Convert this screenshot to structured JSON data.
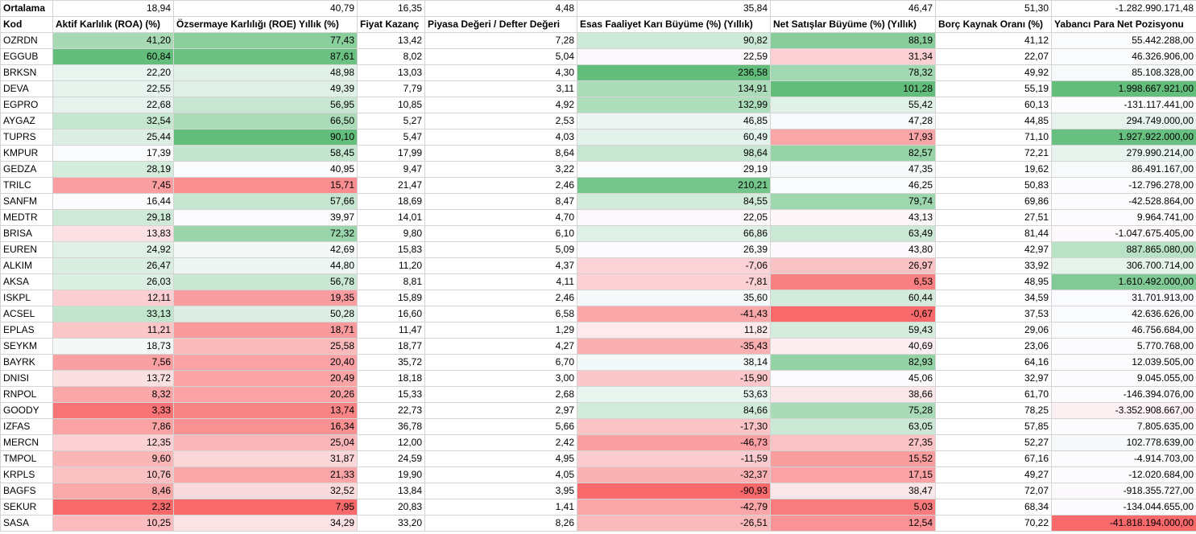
{
  "average_row": {
    "label": "Ortalama",
    "values": [
      "18,94",
      "40,79",
      "16,35",
      "4,48",
      "35,84",
      "46,47",
      "51,30",
      "-1.282.990.171,48"
    ]
  },
  "columns": [
    "Kod",
    "Aktif Karlılık (ROA) (%)",
    "Özsermaye Karlılığı (ROE) Yıllık (%)",
    "Fiyat Kazanç",
    "Piyasa Değeri / Defter Değeri",
    "Esas Faaliyet Karı Büyüme (%) (Yıllık)",
    "Net Satışlar Büyüme (%) (Yıllık)",
    "Borç Kaynak Oranı (%)",
    "Yabancı Para Net Pozisyonu"
  ],
  "rows": [
    {
      "kod": "OZRDN",
      "cells": [
        "41,20",
        "77,43",
        "13,42",
        "7,28",
        "90,82",
        "88,19",
        "41,12",
        "55.442.288,00"
      ]
    },
    {
      "kod": "EGGUB",
      "cells": [
        "60,84",
        "87,61",
        "8,02",
        "5,04",
        "22,59",
        "31,34",
        "22,07",
        "46.326.906,00"
      ]
    },
    {
      "kod": "BRKSN",
      "cells": [
        "22,20",
        "48,98",
        "13,03",
        "4,30",
        "236,58",
        "78,32",
        "49,92",
        "85.108.328,00"
      ]
    },
    {
      "kod": "DEVA",
      "cells": [
        "22,55",
        "49,39",
        "7,79",
        "3,11",
        "134,91",
        "101,28",
        "55,19",
        "1.998.667.921,00"
      ]
    },
    {
      "kod": "EGPRO",
      "cells": [
        "22,68",
        "56,95",
        "10,85",
        "4,92",
        "132,99",
        "55,42",
        "60,13",
        "-131.117.441,00"
      ]
    },
    {
      "kod": "AYGAZ",
      "cells": [
        "32,54",
        "66,50",
        "5,27",
        "2,53",
        "46,85",
        "47,28",
        "44,85",
        "294.749.000,00"
      ]
    },
    {
      "kod": "TUPRS",
      "cells": [
        "25,44",
        "90,10",
        "5,47",
        "4,03",
        "60,49",
        "17,93",
        "71,10",
        "1.927.922.000,00"
      ]
    },
    {
      "kod": "KMPUR",
      "cells": [
        "17,39",
        "58,45",
        "17,99",
        "8,64",
        "98,64",
        "82,57",
        "72,21",
        "279.990.214,00"
      ]
    },
    {
      "kod": "GEDZA",
      "cells": [
        "28,19",
        "40,95",
        "9,47",
        "3,22",
        "29,19",
        "47,35",
        "19,62",
        "86.491.167,00"
      ]
    },
    {
      "kod": "TRILC",
      "cells": [
        "7,45",
        "15,71",
        "21,47",
        "2,46",
        "210,21",
        "46,25",
        "50,83",
        "-12.796.278,00"
      ]
    },
    {
      "kod": "SANFM",
      "cells": [
        "16,44",
        "57,66",
        "18,69",
        "8,47",
        "84,55",
        "79,74",
        "69,86",
        "-42.528.864,00"
      ]
    },
    {
      "kod": "MEDTR",
      "cells": [
        "29,18",
        "39,97",
        "14,01",
        "4,70",
        "22,05",
        "43,13",
        "27,51",
        "9.964.741,00"
      ]
    },
    {
      "kod": "BRISA",
      "cells": [
        "13,83",
        "72,32",
        "9,80",
        "6,10",
        "66,86",
        "63,49",
        "81,44",
        "-1.047.675.405,00"
      ]
    },
    {
      "kod": "EUREN",
      "cells": [
        "24,92",
        "42,69",
        "15,83",
        "5,09",
        "26,39",
        "43,80",
        "42,97",
        "887.865.080,00"
      ]
    },
    {
      "kod": "ALKIM",
      "cells": [
        "26,47",
        "44,80",
        "11,20",
        "4,37",
        "-7,06",
        "26,97",
        "33,92",
        "306.700.714,00"
      ]
    },
    {
      "kod": "AKSA",
      "cells": [
        "26,03",
        "56,78",
        "8,81",
        "4,11",
        "-7,81",
        "6,53",
        "48,95",
        "1.610.492.000,00"
      ]
    },
    {
      "kod": "ISKPL",
      "cells": [
        "12,11",
        "19,35",
        "15,89",
        "2,46",
        "35,60",
        "60,44",
        "34,59",
        "31.701.913,00"
      ]
    },
    {
      "kod": "ACSEL",
      "cells": [
        "33,13",
        "50,28",
        "16,60",
        "6,58",
        "-41,43",
        "-0,67",
        "37,53",
        "42.636.626,00"
      ]
    },
    {
      "kod": "EPLAS",
      "cells": [
        "11,21",
        "18,71",
        "11,47",
        "1,29",
        "11,82",
        "59,43",
        "29,06",
        "46.756.684,00"
      ]
    },
    {
      "kod": "SEYKM",
      "cells": [
        "18,73",
        "25,58",
        "18,77",
        "4,27",
        "-35,43",
        "40,69",
        "23,06",
        "5.770.768,00"
      ]
    },
    {
      "kod": "BAYRK",
      "cells": [
        "7,56",
        "20,40",
        "35,72",
        "6,70",
        "38,14",
        "82,93",
        "64,16",
        "12.039.505,00"
      ]
    },
    {
      "kod": "DNISI",
      "cells": [
        "13,72",
        "20,49",
        "18,18",
        "3,00",
        "-15,90",
        "45,06",
        "32,97",
        "9.045.055,00"
      ]
    },
    {
      "kod": "RNPOL",
      "cells": [
        "8,32",
        "20,26",
        "15,33",
        "2,68",
        "53,63",
        "38,66",
        "61,70",
        "-146.394.076,00"
      ]
    },
    {
      "kod": "GOODY",
      "cells": [
        "3,33",
        "13,74",
        "22,73",
        "2,97",
        "84,66",
        "75,28",
        "78,25",
        "-3.352.908.667,00"
      ]
    },
    {
      "kod": "IZFAS",
      "cells": [
        "7,86",
        "16,34",
        "36,78",
        "5,66",
        "-17,30",
        "63,05",
        "57,85",
        "7.805.635,00"
      ]
    },
    {
      "kod": "MERCN",
      "cells": [
        "12,35",
        "25,04",
        "12,00",
        "2,42",
        "-46,73",
        "27,35",
        "52,27",
        "102.778.639,00"
      ]
    },
    {
      "kod": "TMPOL",
      "cells": [
        "9,60",
        "31,87",
        "24,59",
        "4,95",
        "-11,59",
        "15,52",
        "67,16",
        "-4.914.703,00"
      ]
    },
    {
      "kod": "KRPLS",
      "cells": [
        "10,76",
        "21,33",
        "19,90",
        "4,05",
        "-32,37",
        "17,15",
        "49,27",
        "-12.020.684,00"
      ]
    },
    {
      "kod": "BAGFS",
      "cells": [
        "8,46",
        "32,52",
        "13,84",
        "3,95",
        "-90,93",
        "38,47",
        "72,07",
        "-918.355.727,00"
      ]
    },
    {
      "kod": "SEKUR",
      "cells": [
        "2,32",
        "7,95",
        "20,83",
        "1,41",
        "-42,79",
        "5,03",
        "68,34",
        "-134.044.655,00"
      ]
    },
    {
      "kod": "SASA",
      "cells": [
        "10,25",
        "34,29",
        "33,20",
        "8,26",
        "-26,51",
        "12,54",
        "70,22",
        "-41.818.194.000,00"
      ]
    }
  ],
  "color_scale": {
    "min_color": "#f8696b",
    "mid_color": "#fcfcff",
    "max_color": "#63be7b",
    "scaled_columns": [
      0,
      1,
      4,
      5,
      7
    ]
  }
}
